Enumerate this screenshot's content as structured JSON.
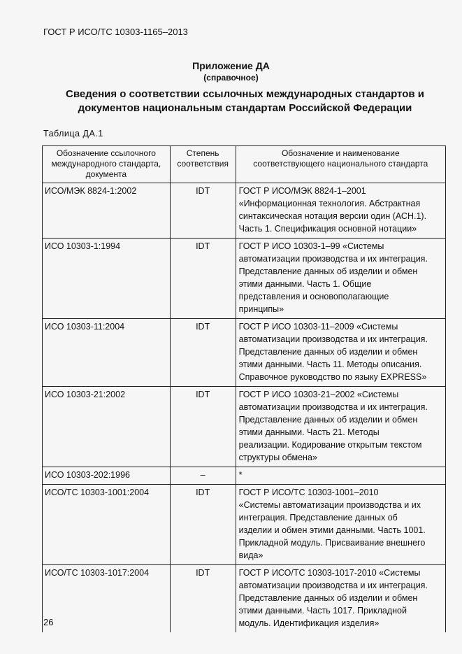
{
  "running_header": "ГОСТ Р ИСО/ТС 10303-1165–2013",
  "appendix": {
    "title": "Приложение ДА",
    "subtitle": "(справочное)"
  },
  "heading": "Сведения о соответствии ссылочных международных стандартов и\nдокументов национальным стандартам Российской Федерации",
  "table_caption": "Таблица ДА.1",
  "table": {
    "headers": [
      "Обозначение ссылочного\nмеждународного стандарта,\nдокумента",
      "Степень\nсоответствия",
      "Обозначение и наименование\nсоответствующего национального стандарта"
    ],
    "rows": [
      {
        "ref": "ИСО/МЭК 8824-1:2002",
        "degree": "IDT",
        "national": "   ГОСТ Р ИСО/МЭК 8824-1–2001\n«Информационная технология. Абстрактная\nсинтаксическая нотация версии один (АСН.1).\nЧасть 1. Спецификация основной нотации»"
      },
      {
        "ref": "ИСО 10303-1:1994",
        "degree": "IDT",
        "national": "   ГОСТ Р ИСО 10303-1–99 «Системы\nавтоматизации производства и их интеграция.\nПредставление данных об изделии и обмен\nэтими данными. Часть 1. Общие\nпредставления и основополагающие\nпринципы»"
      },
      {
        "ref": "ИСО 10303-11:2004",
        "degree": "IDT",
        "national": "   ГОСТ Р ИСО 10303-11–2009 «Системы\nавтоматизации производства и их интеграция.\nПредставление данных об изделии и обмен\nэтими данными. Часть 11. Методы описания.\nСправочное руководство по языку EXPRESS»"
      },
      {
        "ref": "ИСО 10303-21:2002",
        "degree": "IDT",
        "national": "   ГОСТ Р ИСО 10303-21–2002 «Системы\nавтоматизации производства и их интеграция.\nПредставление данных об изделии и обмен\nэтими данными. Часть 21. Методы\nреализации. Кодирование открытым текстом\nструктуры обмена»"
      },
      {
        "ref": "ИСО 10303-202:1996",
        "degree": "–",
        "national": "*"
      },
      {
        "ref": "ИСО/ТС 10303-1001:2004",
        "degree": "IDT",
        "national": "   ГОСТ Р ИСО/ТС 10303-1001–2010\n«Системы автоматизации производства и их\nинтеграция. Представление данных об\nизделии и обмен этими данными. Часть 1001.\nПрикладной модуль. Присваивание внешнего\nвида»"
      },
      {
        "ref": "ИСО/ТС 10303-1017:2004",
        "degree": "IDT",
        "national": "  ГОСТ Р ИСО/ТС 10303-1017-2010 «Системы\nавтоматизации производства и их интеграция.\nПредставление данных об изделии и обмен\nэтими данными. Часть 1017. Прикладной\nмодуль. Идентификация изделия»"
      }
    ]
  },
  "page_number": "26"
}
